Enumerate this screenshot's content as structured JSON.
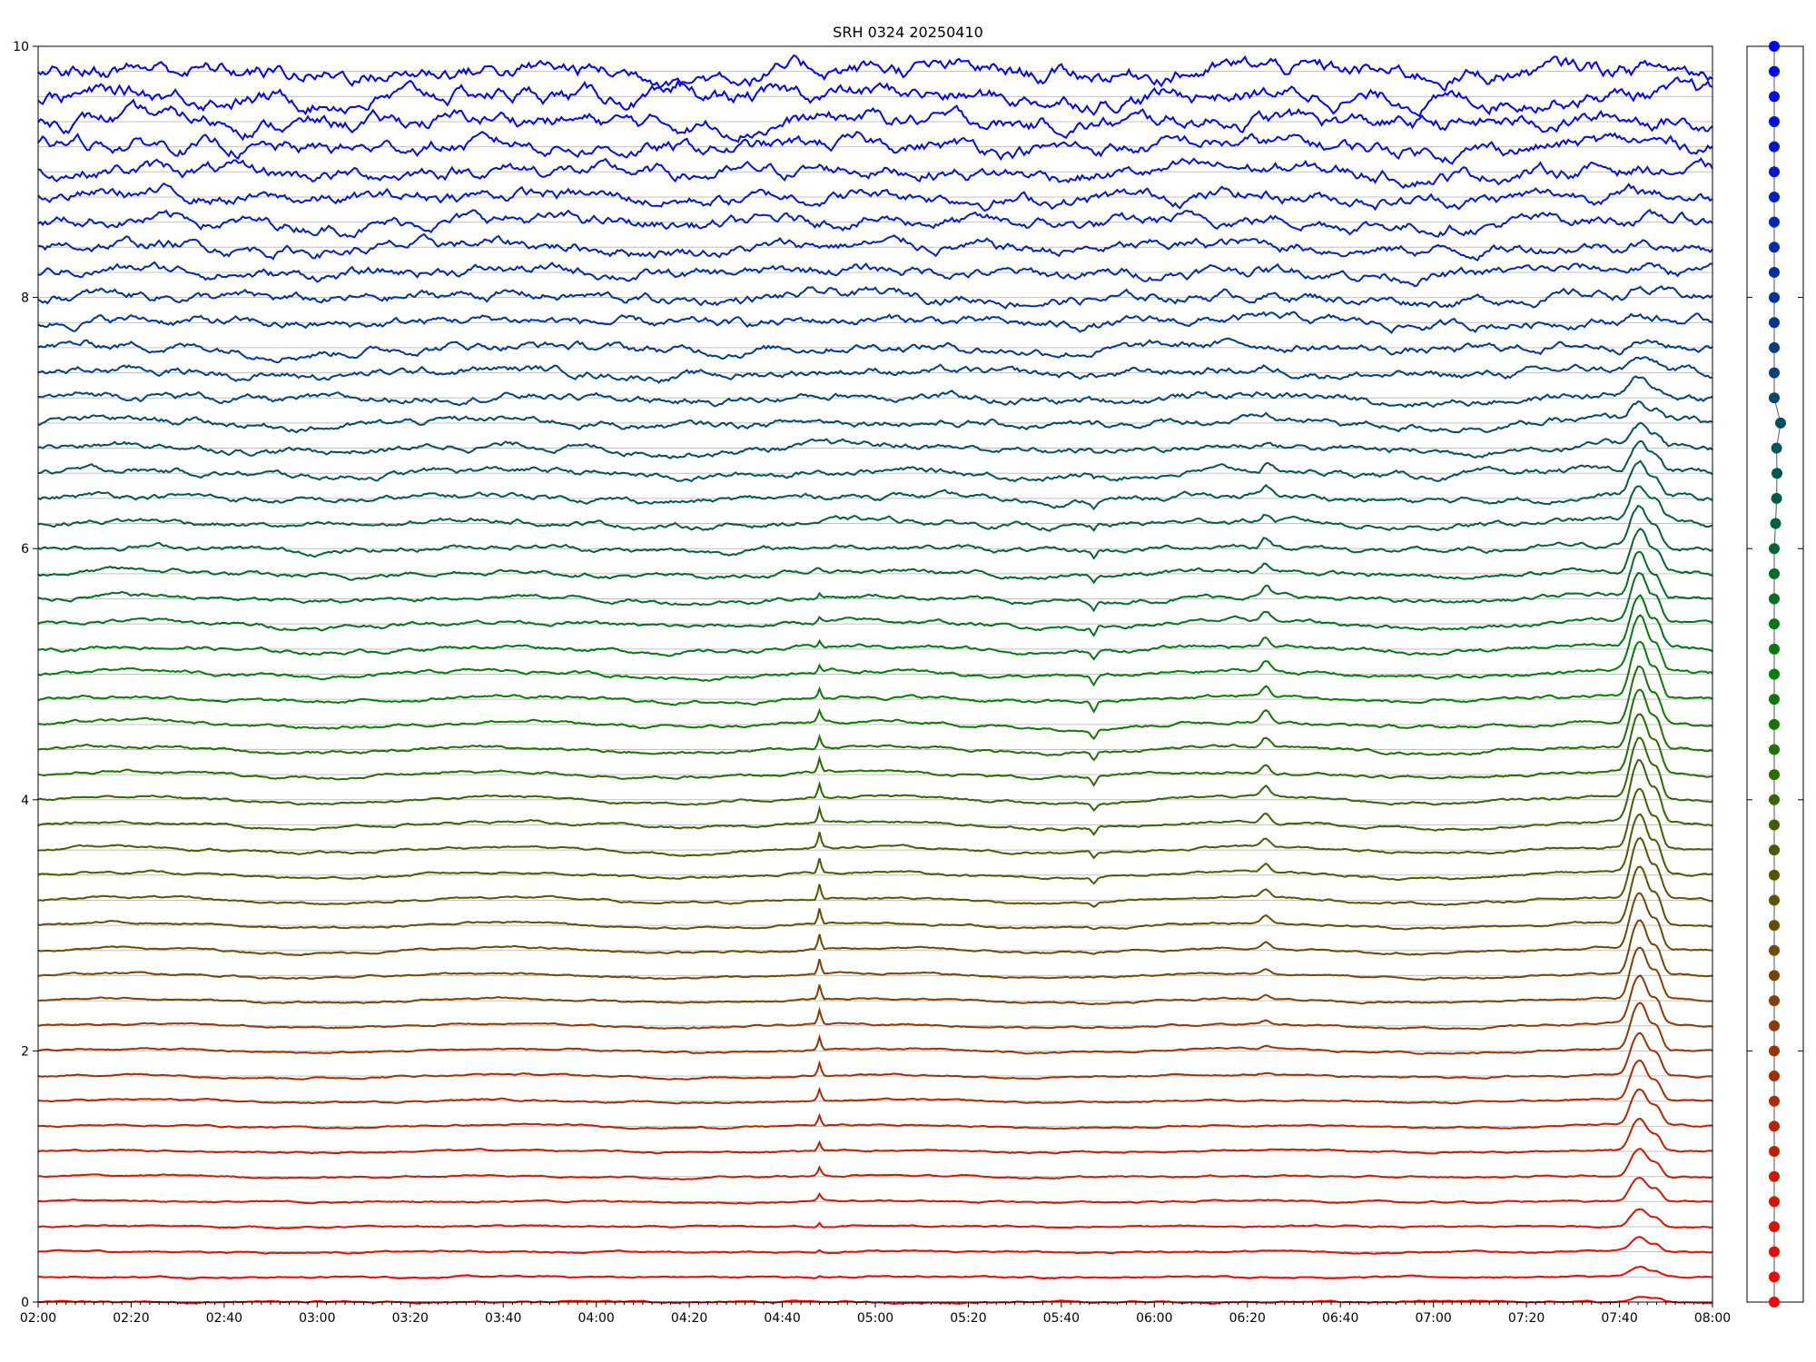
{
  "chart_data": {
    "type": "line",
    "title": "SRH 0324 20250410",
    "xlabel": "",
    "ylabel": "",
    "x_tick_labels": [
      "02:00",
      "02:20",
      "02:40",
      "03:00",
      "03:20",
      "03:40",
      "04:00",
      "04:20",
      "04:40",
      "05:00",
      "05:20",
      "05:40",
      "06:00",
      "06:20",
      "06:40",
      "07:00",
      "07:20",
      "07:40",
      "08:00"
    ],
    "x_range": [
      "02:00",
      "08:00"
    ],
    "y_tick_labels": [
      "0",
      "2",
      "4",
      "6",
      "8",
      "10"
    ],
    "ylim": [
      0,
      10
    ],
    "grid": "horizontal baselines per trace",
    "n_traces": 50,
    "trace_spacing": 0.2,
    "trace_color_start": "#ff0000",
    "trace_color_mid": "#008000",
    "trace_color_end": "#0000ff",
    "events": [
      {
        "time": "04:48",
        "description": "sharp spike on lower channels"
      },
      {
        "time": "05:47",
        "description": "dip on mid channels"
      },
      {
        "time": "06:24",
        "description": "bump on mid channels"
      },
      {
        "time": "07:45",
        "description": "main burst, strongest on mid channels"
      }
    ],
    "secondary_panel": {
      "type": "scatter",
      "points": 51,
      "color_bottom": "#ff0000",
      "color_top": "#0000ff"
    }
  }
}
